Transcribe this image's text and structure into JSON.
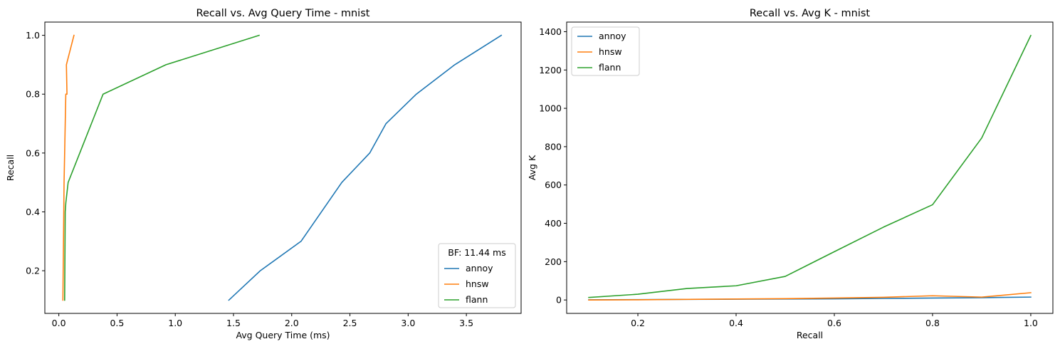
{
  "colors": {
    "annoy": "#1f77b4",
    "hnsw": "#ff7f0e",
    "flann": "#2ca02c"
  },
  "chart_data": [
    {
      "type": "line",
      "title": "Recall vs. Avg Query Time - mnist",
      "xlabel": "Avg Query Time (ms)",
      "ylabel": "Recall",
      "xlim": [
        -0.12,
        3.97
      ],
      "ylim": [
        0.055,
        1.045
      ],
      "xticks": [
        0.0,
        0.5,
        1.0,
        1.5,
        2.0,
        2.5,
        3.0,
        3.5
      ],
      "xtick_labels": [
        "0.0",
        "0.5",
        "1.0",
        "1.5",
        "2.0",
        "2.5",
        "3.0",
        "3.5"
      ],
      "yticks": [
        0.2,
        0.4,
        0.6,
        0.8,
        1.0
      ],
      "ytick_labels": [
        "0.2",
        "0.4",
        "0.6",
        "0.8",
        "1.0"
      ],
      "grid": false,
      "legend": {
        "title": "BF: 11.44 ms",
        "position": "lower-right",
        "entries": [
          "annoy",
          "hnsw",
          "flann"
        ]
      },
      "series": [
        {
          "name": "annoy",
          "color": "#1f77b4",
          "x": [
            1.46,
            1.73,
            2.08,
            2.43,
            2.67,
            2.81,
            3.07,
            3.4,
            3.8
          ],
          "y": [
            0.1,
            0.2,
            0.3,
            0.5,
            0.6,
            0.7,
            0.8,
            0.9,
            1.0
          ]
        },
        {
          "name": "hnsw",
          "color": "#ff7f0e",
          "x": [
            0.035,
            0.04,
            0.045,
            0.05,
            0.055,
            0.06,
            0.07,
            0.065,
            0.13
          ],
          "y": [
            0.1,
            0.3,
            0.5,
            0.6,
            0.7,
            0.8,
            0.8,
            0.9,
            1.0
          ]
        },
        {
          "name": "flann",
          "color": "#2ca02c",
          "x": [
            0.05,
            0.055,
            0.06,
            0.08,
            0.18,
            0.38,
            0.92,
            1.72
          ],
          "y": [
            0.1,
            0.4,
            0.43,
            0.5,
            0.6,
            0.8,
            0.9,
            1.0
          ]
        }
      ]
    },
    {
      "type": "line",
      "title": "Recall vs. Avg K - mnist",
      "xlabel": "Recall",
      "ylabel": "Avg K",
      "xlim": [
        0.055,
        1.045
      ],
      "ylim": [
        -70,
        1450
      ],
      "xticks": [
        0.2,
        0.4,
        0.6,
        0.8,
        1.0
      ],
      "xtick_labels": [
        "0.2",
        "0.4",
        "0.6",
        "0.8",
        "1.0"
      ],
      "yticks": [
        0,
        200,
        400,
        600,
        800,
        1000,
        1200,
        1400
      ],
      "ytick_labels": [
        "0",
        "200",
        "400",
        "600",
        "800",
        "1000",
        "1200",
        "1400"
      ],
      "grid": false,
      "legend": {
        "title": "",
        "position": "upper-left",
        "entries": [
          "annoy",
          "hnsw",
          "flann"
        ]
      },
      "series": [
        {
          "name": "annoy",
          "color": "#1f77b4",
          "x": [
            0.1,
            0.2,
            0.3,
            0.4,
            0.5,
            0.6,
            0.7,
            0.8,
            0.9,
            1.0
          ],
          "y": [
            1,
            2,
            3,
            4,
            5,
            6,
            8,
            10,
            12,
            15
          ]
        },
        {
          "name": "hnsw",
          "color": "#ff7f0e",
          "x": [
            0.1,
            0.2,
            0.3,
            0.4,
            0.5,
            0.6,
            0.7,
            0.8,
            0.9,
            1.0
          ],
          "y": [
            0,
            1,
            3,
            5,
            7,
            10,
            14,
            22,
            15,
            38
          ]
        },
        {
          "name": "flann",
          "color": "#2ca02c",
          "x": [
            0.1,
            0.2,
            0.3,
            0.4,
            0.5,
            0.6,
            0.7,
            0.8,
            0.9,
            1.0
          ],
          "y": [
            13,
            30,
            60,
            74,
            123,
            252,
            380,
            497,
            845,
            1380
          ]
        }
      ]
    }
  ]
}
